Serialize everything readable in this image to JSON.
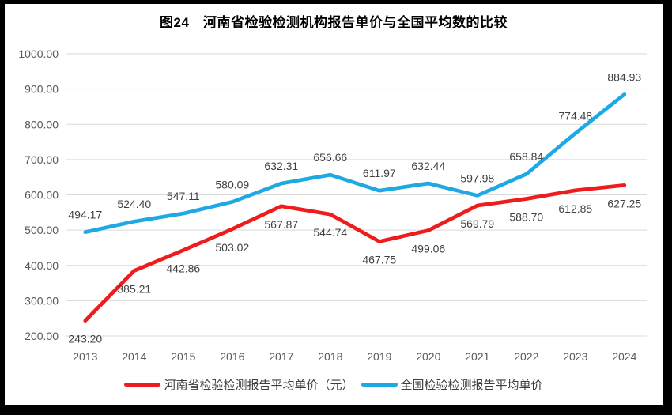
{
  "frame": {
    "background": "#000000",
    "canvas_background": "#ffffff"
  },
  "chart_data": {
    "type": "line",
    "title": "图24　河南省检验检测机构报告单价与全国平均数的比较",
    "categories": [
      "2013",
      "2014",
      "2015",
      "2016",
      "2017",
      "2018",
      "2019",
      "2020",
      "2021",
      "2022",
      "2023",
      "2024"
    ],
    "series": [
      {
        "name": "河南省检验检测报告平均单价（元）",
        "color": "#ee1c1c",
        "label_position": "below",
        "values": [
          243.2,
          385.21,
          442.86,
          503.02,
          567.87,
          544.74,
          467.75,
          499.06,
          569.79,
          588.7,
          612.85,
          627.25
        ]
      },
      {
        "name": "全国检验检测报告平均单价",
        "color": "#1ea9e4",
        "label_position": "above",
        "values": [
          494.17,
          524.4,
          547.11,
          580.09,
          632.31,
          656.66,
          611.97,
          632.44,
          597.98,
          658.84,
          774.48,
          884.93
        ]
      }
    ],
    "y_axis": {
      "min": 200,
      "max": 1000,
      "step": 100,
      "ticks": [
        "200.00",
        "300.00",
        "400.00",
        "500.00",
        "600.00",
        "700.00",
        "800.00",
        "900.00",
        "1000.00"
      ]
    },
    "xlabel": "",
    "ylabel": "",
    "grid": true,
    "gridline_color": "#d9d9d9",
    "axis_label_color": "#595959",
    "data_label_color": "#404040",
    "legend_position": "bottom"
  }
}
